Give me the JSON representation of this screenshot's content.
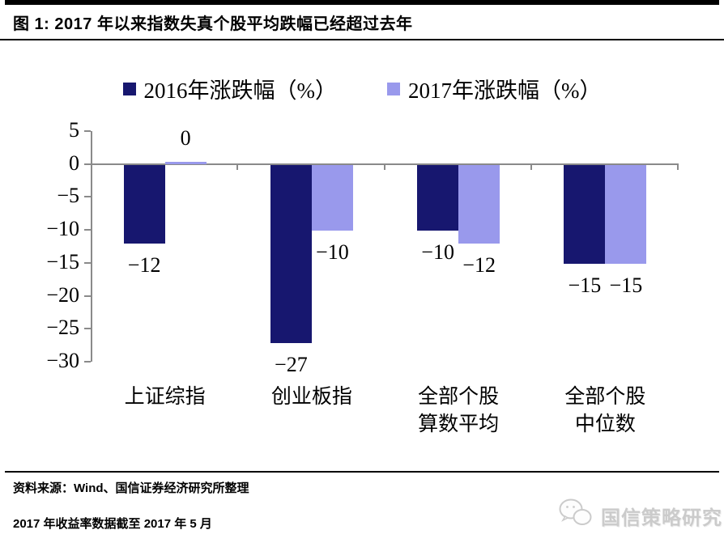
{
  "header": {
    "title": "图 1: 2017 年以来指数失真个股平均跌幅已经超过去年"
  },
  "chart_data": {
    "type": "bar",
    "title": "2017 年以来指数失真个股平均跌幅已经超过去年",
    "categories": [
      "上证综指",
      "创业板指",
      "全部个股\n算数平均",
      "全部个股\n中位数"
    ],
    "series": [
      {
        "name": "2016年涨跌幅（%）",
        "color": "#17176F",
        "values": [
          -12,
          -27,
          -10,
          -15
        ]
      },
      {
        "name": "2017年涨跌幅（%）",
        "color": "#9999EC",
        "values": [
          0,
          -10,
          -12,
          -15
        ]
      }
    ],
    "xlabel": "",
    "ylabel": "",
    "ylim": [
      -30,
      5
    ],
    "yticks": [
      5,
      0,
      -5,
      -10,
      -15,
      -20,
      -25,
      -30
    ],
    "grid": false,
    "legend_position": "top",
    "data_labels": [
      [
        "-12",
        "-27",
        "-10",
        "-15"
      ],
      [
        "0",
        "-10",
        "-12",
        "-15"
      ]
    ],
    "axis_color": "#8a8a8a"
  },
  "footer": {
    "source": "资料来源：Wind、国信证券经济研究所整理",
    "note": "2017 年收益率数据截至 2017 年 5 月"
  },
  "watermark": {
    "icon": "wechat-icon",
    "text": "国信策略研究"
  }
}
